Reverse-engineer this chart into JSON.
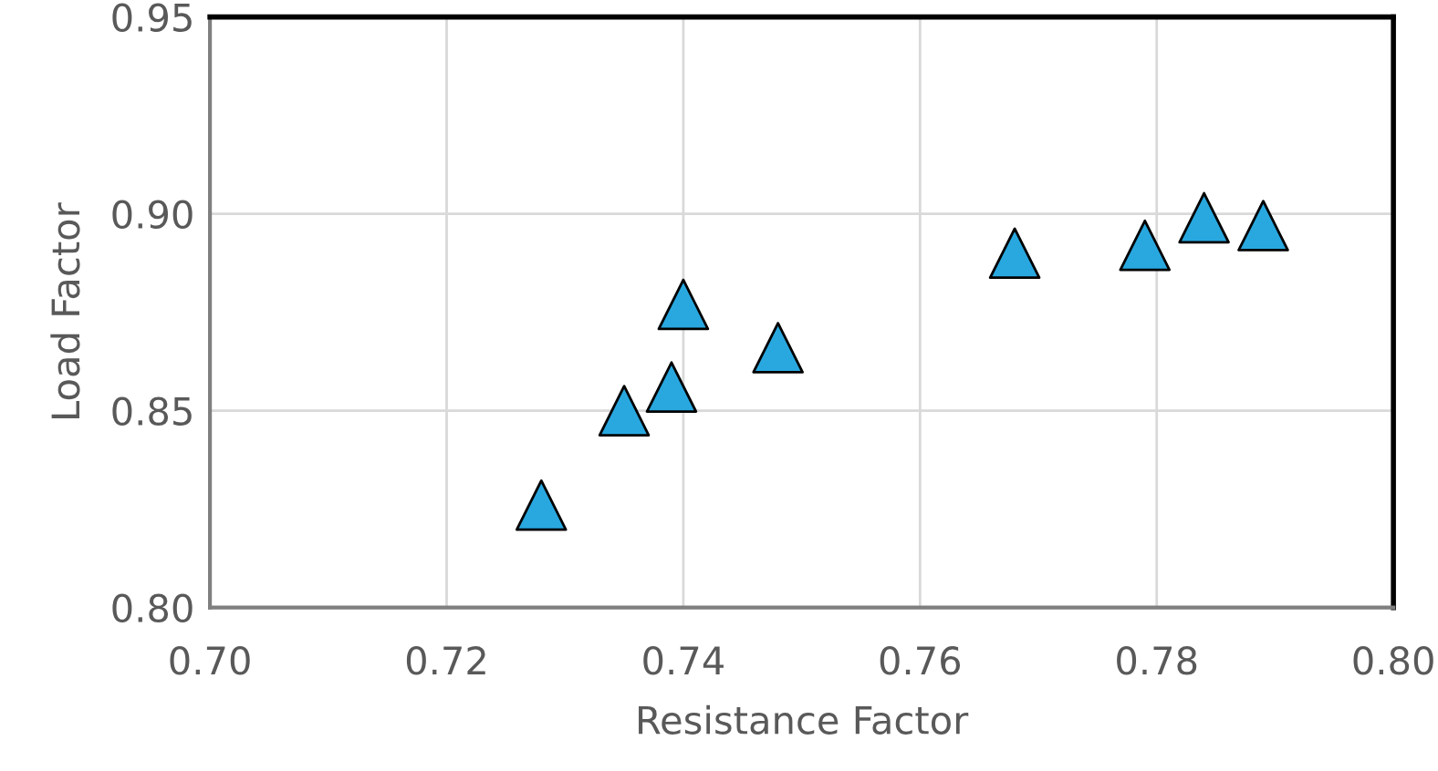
{
  "chart_data": {
    "type": "scatter",
    "xlabel": "Resistance Factor",
    "ylabel": "Load Factor",
    "x": [
      0.728,
      0.735,
      0.739,
      0.74,
      0.748,
      0.768,
      0.779,
      0.784,
      0.789
    ],
    "series": [
      {
        "color": "#29a8e0",
        "values": [
          0.826,
          0.85,
          0.856,
          0.877,
          0.866,
          0.89,
          0.892,
          0.899,
          0.897
        ]
      }
    ],
    "xlim": [
      0.7,
      0.8
    ],
    "xticks": [
      {
        "value": 0.7,
        "label": "0.70"
      },
      {
        "value": 0.72,
        "label": "0.72"
      },
      {
        "value": 0.74,
        "label": "0.74"
      },
      {
        "value": 0.76,
        "label": "0.76"
      },
      {
        "value": 0.78,
        "label": "0.78"
      },
      {
        "value": 0.8,
        "label": "0.80"
      }
    ],
    "ylim": [
      0.8,
      0.95
    ],
    "yticks": [
      {
        "value": 0.8,
        "label": "0.80"
      },
      {
        "value": 0.85,
        "label": "0.85"
      },
      {
        "value": 0.9,
        "label": "0.90"
      },
      {
        "value": 0.95,
        "label": "0.95"
      }
    ],
    "grid": true,
    "marker": "triangle",
    "legend": false
  }
}
